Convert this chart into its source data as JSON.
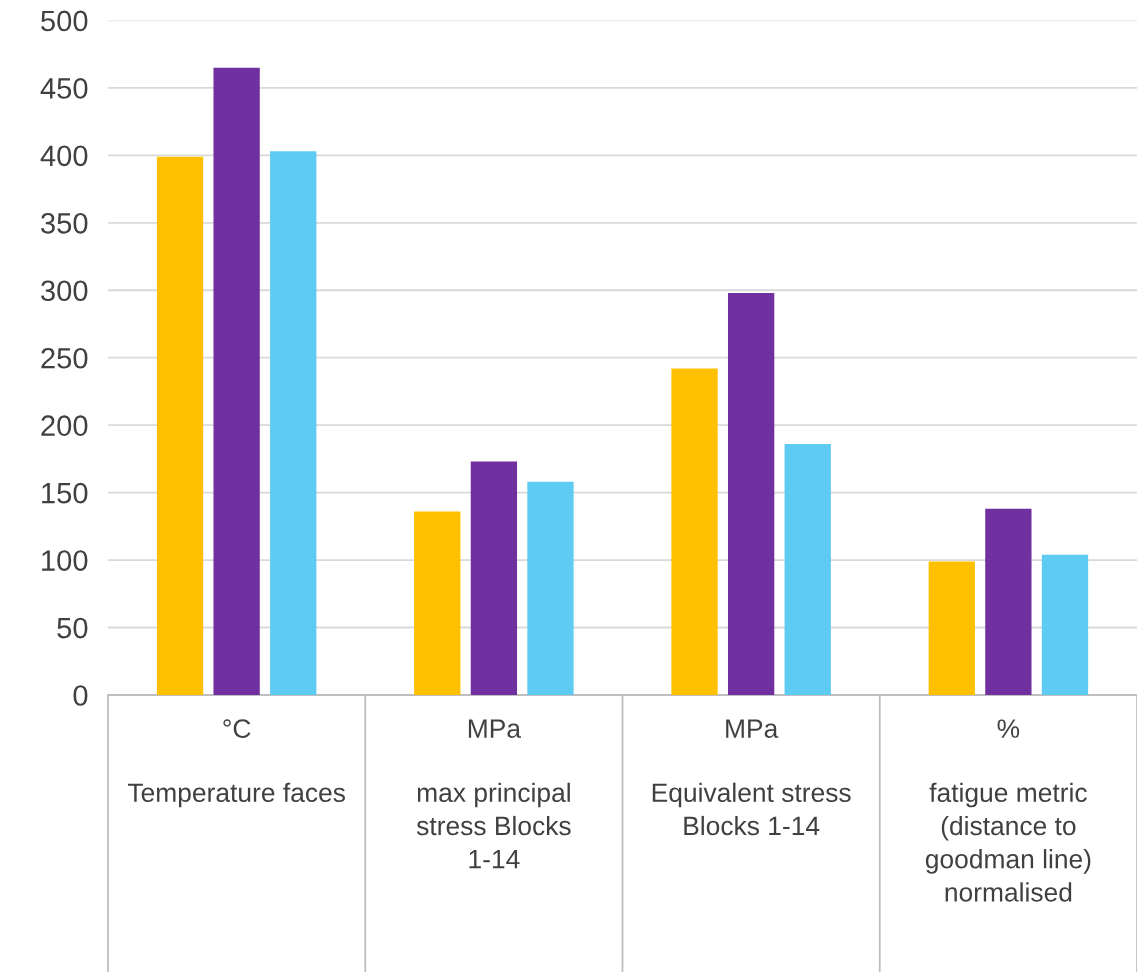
{
  "chart_data": {
    "type": "bar",
    "categories": [
      "°C\nTemperature faces",
      "MPa\nmax principal stress Blocks 1-14",
      "MPa\nEquivalent stress Blocks 1-14",
      "%\nfatigue metric (distance to goodman line) normalised"
    ],
    "series": [
      {
        "color": "#ffc000",
        "values": [
          399,
          136,
          242,
          99
        ]
      },
      {
        "color": "#7030a0",
        "values": [
          465,
          173,
          298,
          138
        ]
      },
      {
        "color": "#5ecbf2",
        "values": [
          403,
          158,
          186,
          104
        ]
      }
    ],
    "ylim": [
      0,
      500
    ],
    "yticks": [
      0,
      50,
      100,
      150,
      200,
      250,
      300,
      350,
      400,
      450,
      500
    ],
    "grid": "y",
    "legend": false
  }
}
